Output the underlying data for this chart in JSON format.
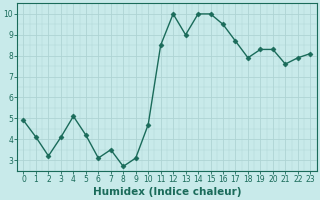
{
  "x": [
    0,
    1,
    2,
    3,
    4,
    5,
    6,
    7,
    8,
    9,
    10,
    11,
    12,
    13,
    14,
    15,
    16,
    17,
    18,
    19,
    20,
    21,
    22,
    23
  ],
  "y": [
    4.9,
    4.1,
    3.2,
    4.1,
    5.1,
    4.2,
    3.1,
    3.5,
    2.7,
    3.1,
    4.7,
    8.5,
    10.0,
    9.0,
    10.0,
    10.0,
    9.5,
    8.7,
    7.9,
    8.3,
    8.3,
    7.6,
    7.9,
    8.1
  ],
  "line_color": "#1a6b5a",
  "marker": "D",
  "marker_size": 2.5,
  "bg_color": "#c8eaea",
  "grid_color": "#aed4d4",
  "grid_major_color": "#9ec8c8",
  "xlabel": "Humidex (Indice chaleur)",
  "ylabel": "",
  "ylim": [
    2.5,
    10.5
  ],
  "xlim": [
    -0.5,
    23.5
  ],
  "yticks": [
    3,
    4,
    5,
    6,
    7,
    8,
    9,
    10
  ],
  "xticks": [
    0,
    1,
    2,
    3,
    4,
    5,
    6,
    7,
    8,
    9,
    10,
    11,
    12,
    13,
    14,
    15,
    16,
    17,
    18,
    19,
    20,
    21,
    22,
    23
  ],
  "tick_fontsize": 5.5,
  "xlabel_fontsize": 7.5,
  "line_width": 1.0
}
